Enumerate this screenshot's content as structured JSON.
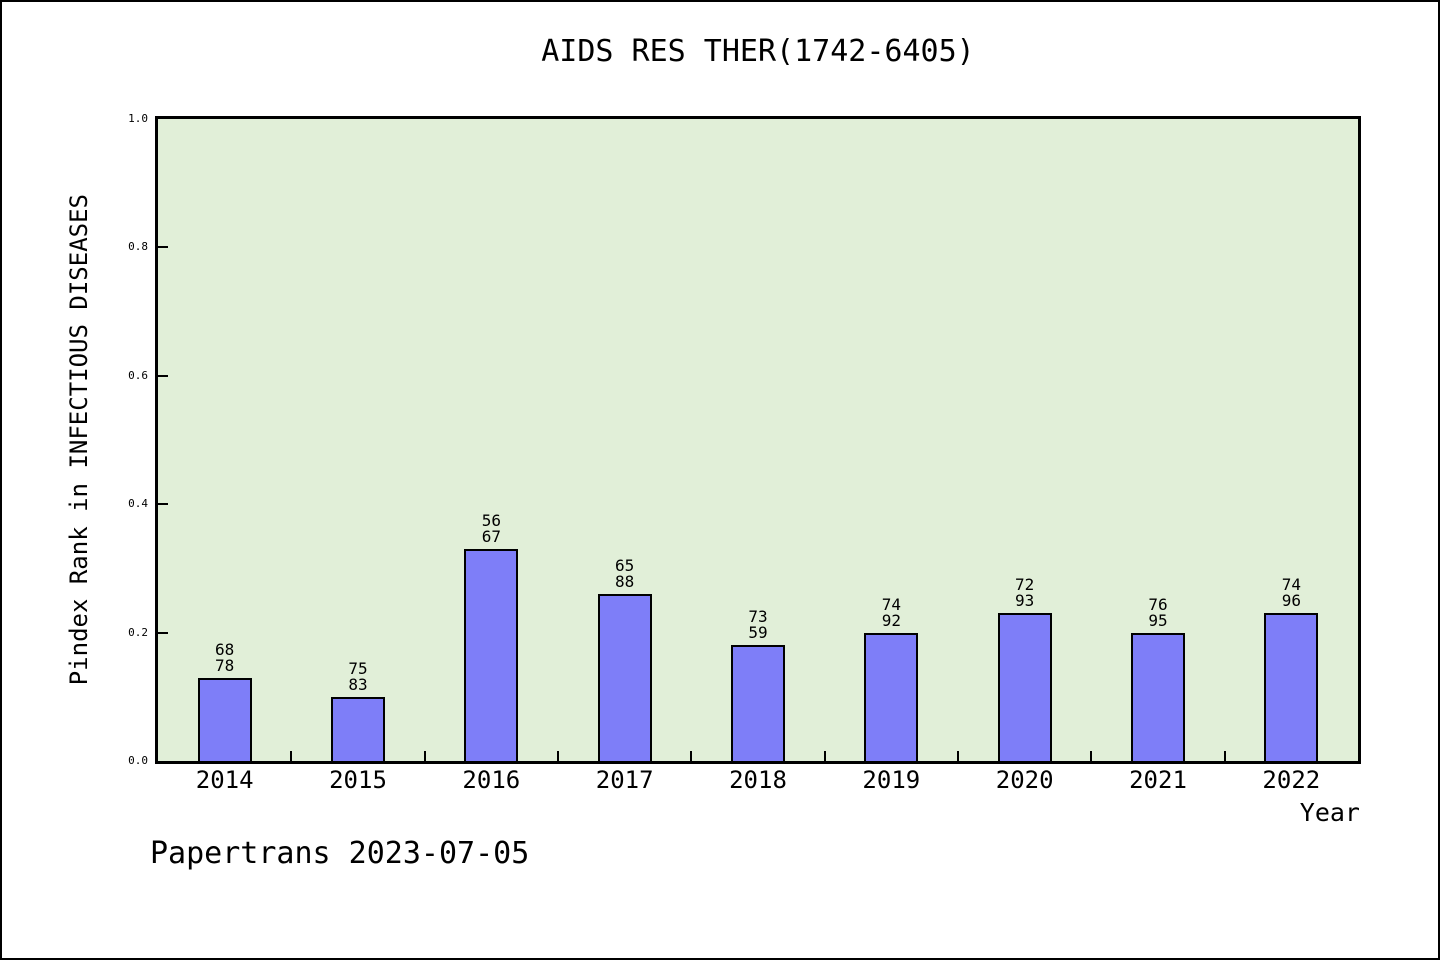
{
  "page": {
    "background": "#ffffff",
    "frame_border_color": "#000000"
  },
  "chart_data": {
    "type": "bar",
    "title": "AIDS RES THER(1742-6405)",
    "xlabel": "Year",
    "ylabel": "Pindex Rank in INFECTIOUS DISEASES",
    "footer_annotation": "Papertrans 2023-07-05",
    "categories": [
      "2014",
      "2015",
      "2016",
      "2017",
      "2018",
      "2019",
      "2020",
      "2021",
      "2022"
    ],
    "values": [
      0.13,
      0.1,
      0.33,
      0.26,
      0.18,
      0.2,
      0.23,
      0.2,
      0.23
    ],
    "bar_labels": [
      [
        "68",
        "78"
      ],
      [
        "75",
        "83"
      ],
      [
        "56",
        "67"
      ],
      [
        "65",
        "88"
      ],
      [
        "73",
        "59"
      ],
      [
        "74",
        "92"
      ],
      [
        "72",
        "93"
      ],
      [
        "76",
        "95"
      ],
      [
        "74",
        "96"
      ]
    ],
    "ylim": [
      0.0,
      1.0
    ],
    "ytick_labels": [
      "0.0",
      "0.2",
      "0.4",
      "0.6",
      "0.8",
      "1.0"
    ],
    "grid": false,
    "legend": "none",
    "colors": {
      "bar_fill": "#7e7ef8",
      "bar_edge": "#000000",
      "plot_background": "#e1efd8",
      "text": "#000000"
    }
  }
}
